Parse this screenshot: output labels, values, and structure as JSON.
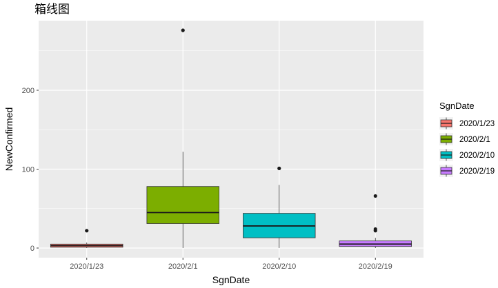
{
  "chart_data": {
    "type": "box",
    "title": "箱线图",
    "xlabel": "SgnDate",
    "ylabel": "NewConfirmed",
    "ylim": [
      -8,
      290
    ],
    "y_ticks": [
      0,
      100,
      200
    ],
    "grid": true,
    "legend": {
      "title": "SgnDate",
      "position": "right"
    },
    "categories": [
      "2020/1/23",
      "2020/2/1",
      "2020/2/10",
      "2020/2/19"
    ],
    "series": [
      {
        "name": "2020/1/23",
        "color": "#F8766D",
        "whisker_low": 0,
        "q1": 1,
        "median": 3,
        "q3": 5,
        "whisker_high": 7,
        "outliers": [
          22
        ]
      },
      {
        "name": "2020/2/1",
        "color": "#7CAE00",
        "whisker_low": 0,
        "q1": 31,
        "median": 45,
        "q3": 78,
        "whisker_high": 122,
        "outliers": [
          276
        ]
      },
      {
        "name": "2020/2/10",
        "color": "#00BFC4",
        "whisker_low": 0,
        "q1": 13,
        "median": 28,
        "q3": 44,
        "whisker_high": 80,
        "outliers": [
          101
        ]
      },
      {
        "name": "2020/2/19",
        "color": "#C77CFF",
        "whisker_low": 0,
        "q1": 2,
        "median": 5,
        "q3": 9,
        "whisker_high": 13,
        "outliers": [
          22,
          24,
          66
        ]
      }
    ]
  }
}
